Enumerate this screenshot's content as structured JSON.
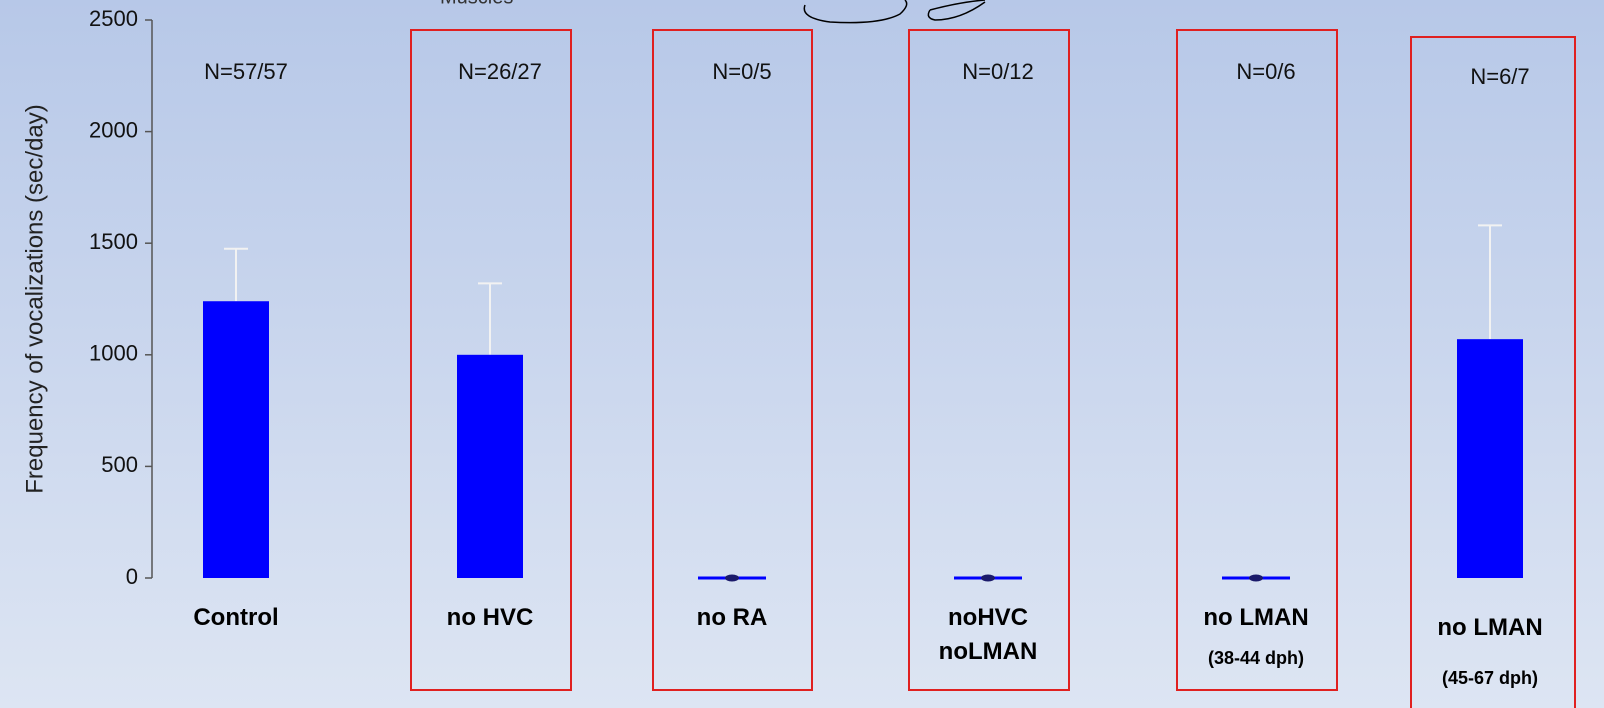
{
  "chart_data": {
    "type": "bar",
    "annotation": "Muscles",
    "y_label": "Frequency of vocalizations (sec/day)",
    "categories": [
      "Control",
      "no HVC",
      "no RA",
      "noHVC\nnoLMAN",
      "no LMAN",
      "no LMAN"
    ],
    "category_notes": [
      null,
      null,
      null,
      null,
      "(38-44 dph)",
      "(45-67 dph)"
    ],
    "n_labels": [
      "N=57/57",
      "N=26/27",
      "N=0/5",
      "N=0/12",
      "N=0/6",
      "N=6/7"
    ],
    "values": [
      1240,
      1000,
      0,
      0,
      0,
      1070
    ],
    "errors": [
      235,
      320,
      0,
      0,
      0,
      510
    ],
    "color": "#0000ff",
    "error_color": "#f2f2f2",
    "ylim": [
      0,
      2500
    ],
    "yticks": [
      0,
      500,
      1000,
      1500,
      2000,
      2500
    ]
  }
}
